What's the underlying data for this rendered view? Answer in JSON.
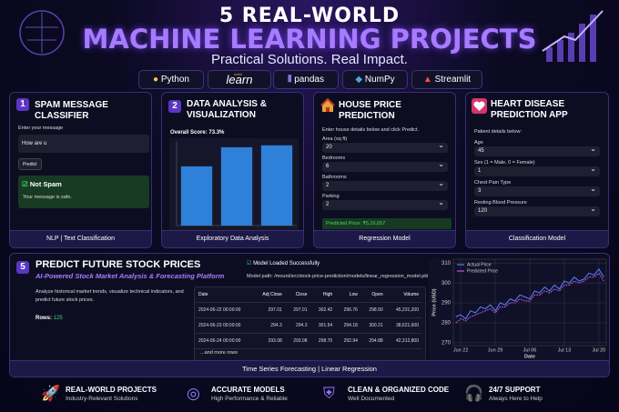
{
  "header": {
    "title_line1": "5 REAL-WORLD",
    "title_line2": "MACHINE LEARNING PROJECTS",
    "subtitle": "Practical Solutions. Real Impact.",
    "tools": [
      {
        "name": "Python"
      },
      {
        "top": "scikit",
        "name": "learn"
      },
      {
        "name": "pandas"
      },
      {
        "name": "NumPy"
      },
      {
        "name": "Streamlit"
      }
    ]
  },
  "projects": [
    {
      "number": "1",
      "title": "SPAM MESSAGE CLASSIFIER",
      "label": "Enter your message",
      "input": "How are u",
      "button": "Predict",
      "result": "Not Spam",
      "note": "Your message is safe.",
      "footer": "NLP | Text Classification"
    },
    {
      "number": "2",
      "title": "DATA ANALYSIS & VISUALIZATION",
      "score": "Overall Score: 73.3%",
      "footer": "Exploratory Data Analysis"
    },
    {
      "title": "HOUSE PRICE PREDICTION",
      "intro": "Enter house details below and click Predict.",
      "fields": [
        {
          "label": "Area (sq ft)",
          "value": "20"
        },
        {
          "label": "Bedrooms",
          "value": "6"
        },
        {
          "label": "Bathrooms",
          "value": "2"
        },
        {
          "label": "Parking",
          "value": "2"
        }
      ],
      "result": "Predicted Price: ₹5,16,657",
      "footer": "Regression Model"
    },
    {
      "title": "HEART DISEASE PREDICTION APP",
      "intro": "Patient details below:",
      "fields": [
        {
          "label": "Age",
          "value": "45"
        },
        {
          "label": "Sex (1 = Male, 0 = Female)",
          "value": "1"
        },
        {
          "label": "Chest Pain Type",
          "value": "3"
        },
        {
          "label": "Resting Blood Pressure",
          "value": "120"
        }
      ],
      "footer": "Classification Model"
    }
  ],
  "stock": {
    "number": "5",
    "title": "PREDICT FUTURE STOCK PRICES",
    "subtitle": "AI-Powered Stock Market Analysis & Forecasting Platform",
    "description": "Analyze historical market trends, visualize technical indicators, and predict future stock prices.",
    "rows_label": "Rows:",
    "rows_value": "125",
    "status": "Model Loaded Successfully",
    "path": "Model path: /mount/src/stock-price-prediction/models/linear_regression_model.pkl",
    "table": {
      "header": [
        "Date",
        "Adj Close",
        "Close",
        "High",
        "Low",
        "Open",
        "Volume"
      ],
      "rows": [
        [
          "2024-06-22 00:00:00",
          "297.01",
          "297.01",
          "302.42",
          "296.76",
          "298.50",
          "45,231,200"
        ],
        [
          "2024-06-23 00:00:00",
          "294.3",
          "294.3",
          "301.54",
          "294.18",
          "300.21",
          "38,621,600"
        ],
        [
          "2024-06-24 00:00:00",
          "293.08",
          "293.08",
          "298.70",
          "292.94",
          "294.88",
          "42,312,800"
        ]
      ],
      "more": "...and more rows"
    },
    "footer": "Time Series Forecasting | Linear Regression"
  },
  "chart_data": [
    {
      "type": "bar",
      "categories": [
        null,
        null,
        null
      ],
      "values": [
        62,
        82,
        84
      ],
      "color": "#2f80d8"
    },
    {
      "type": "line",
      "x": [
        null,
        "Jun 22",
        null,
        null,
        null,
        null,
        null,
        null,
        "Jun 29",
        null,
        null,
        null,
        null,
        null,
        null,
        "Jul 06",
        null,
        null,
        null,
        null,
        null,
        null,
        "Jul 13",
        null,
        null,
        null,
        null,
        null,
        null,
        "Jul 20",
        null
      ],
      "series": [
        {
          "name": "Actual Price",
          "color": "#4f7df5",
          "values": [
            283,
            284,
            282,
            286,
            285,
            288,
            287,
            289,
            286,
            290,
            289,
            292,
            291,
            294,
            293,
            292,
            296,
            295,
            298,
            296,
            299,
            297,
            301,
            300,
            303,
            301,
            302,
            305,
            304,
            307,
            303
          ]
        },
        {
          "name": "Predicted Price",
          "color": "#c04fd8",
          "values": [
            280,
            282,
            281,
            283,
            284,
            285,
            286,
            287,
            285,
            288,
            288,
            290,
            290,
            292,
            291,
            291,
            294,
            294,
            296,
            295,
            297,
            296,
            299,
            299,
            301,
            300,
            301,
            303,
            303,
            305,
            301
          ]
        }
      ],
      "ylim": [
        268.5,
        312
      ],
      "yticks": [
        270,
        280,
        290,
        300,
        310
      ],
      "ylabel": "Price (USD)",
      "xlabel": "Date",
      "grid": true,
      "legend": "upper-left"
    }
  ],
  "features": [
    {
      "title": "REAL-WORLD PROJECTS",
      "sub": "Industry-Relevant Solutions"
    },
    {
      "title": "ACCURATE MODELS",
      "sub": "High Performance & Reliable"
    },
    {
      "title": "CLEAN & ORGANIZED CODE",
      "sub": "Well Documented"
    },
    {
      "title": "24/7 SUPPORT",
      "sub": "Always Here to Help"
    }
  ]
}
